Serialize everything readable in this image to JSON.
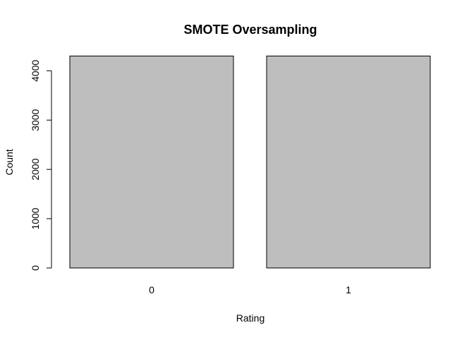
{
  "chart_data": {
    "type": "bar",
    "title": "SMOTE Oversampling",
    "xlabel": "Rating",
    "ylabel": "Count",
    "categories": [
      "0",
      "1"
    ],
    "values": [
      4300,
      4300
    ],
    "ylim": [
      0,
      4300
    ],
    "yticks": [
      0,
      1000,
      2000,
      3000,
      4000
    ],
    "bar_color": "#bebebe",
    "grid": false,
    "legend": "none"
  }
}
